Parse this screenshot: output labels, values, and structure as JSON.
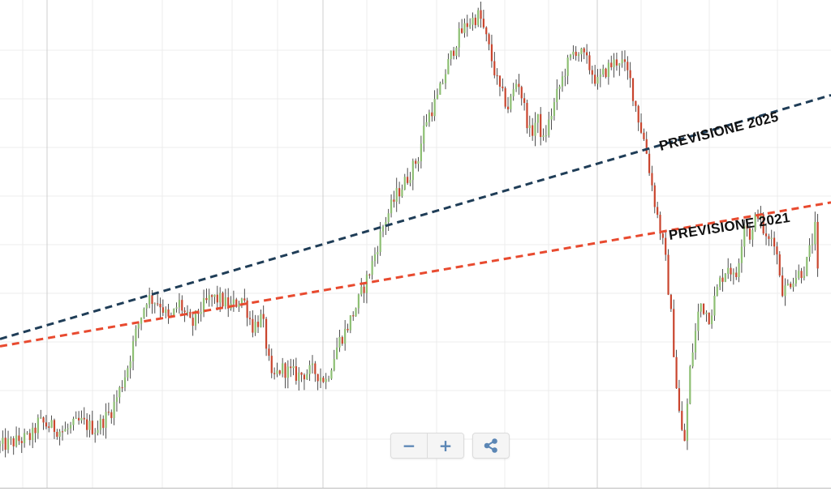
{
  "chart_data": {
    "type": "line",
    "style": "ohlc-candles",
    "title": "",
    "xlabel": "",
    "ylabel": "",
    "x_range": [
      0,
      260
    ],
    "y_range": [
      0,
      100
    ],
    "axes_labels_visible": false,
    "grid": true,
    "colors": {
      "up": "#8dbf73",
      "down": "#c9452e",
      "wick": "#222222",
      "trend_2025": "#1f3d57",
      "trend_2021": "#e84a2f",
      "grid": "#ececec",
      "grid_major": "#cfcfcf"
    },
    "price_path": [
      [
        0,
        8.5
      ],
      [
        10,
        10.5
      ],
      [
        12,
        13.5
      ],
      [
        20,
        11.5
      ],
      [
        25,
        13.5
      ],
      [
        30,
        12.0
      ],
      [
        35,
        16.0
      ],
      [
        38,
        21.0
      ],
      [
        40,
        25.0
      ],
      [
        43,
        33.0
      ],
      [
        46,
        39.0
      ],
      [
        50,
        38.0
      ],
      [
        53,
        34.0
      ],
      [
        56,
        38.0
      ],
      [
        60,
        33.0
      ],
      [
        62,
        36.0
      ],
      [
        66,
        39.0
      ],
      [
        69,
        38.5
      ],
      [
        72,
        37.0
      ],
      [
        76,
        39.0
      ],
      [
        79,
        33.0
      ],
      [
        82,
        35.0
      ],
      [
        85,
        22.0
      ],
      [
        88,
        24.5
      ],
      [
        93,
        23.0
      ],
      [
        98,
        24.0
      ],
      [
        102,
        22.0
      ],
      [
        106,
        30.0
      ],
      [
        108,
        32.0
      ],
      [
        112,
        38.0
      ],
      [
        116,
        45.0
      ],
      [
        120,
        54.0
      ],
      [
        124,
        60.0
      ],
      [
        127,
        63.0
      ],
      [
        131,
        68.0
      ],
      [
        133,
        75.0
      ],
      [
        137,
        80.0
      ],
      [
        140,
        86.5
      ],
      [
        143,
        92.0
      ],
      [
        146,
        95.0
      ],
      [
        150,
        97.0
      ],
      [
        153,
        90.0
      ],
      [
        156,
        82.0
      ],
      [
        159,
        78.0
      ],
      [
        162,
        84.0
      ],
      [
        166,
        72.0
      ],
      [
        168,
        76.0
      ],
      [
        170,
        71.0
      ],
      [
        174,
        80.0
      ],
      [
        177,
        86.0
      ],
      [
        180,
        90.0
      ],
      [
        183,
        88.0
      ],
      [
        187,
        83.0
      ],
      [
        190,
        86.0
      ],
      [
        194,
        88.0
      ],
      [
        197,
        84.0
      ],
      [
        200,
        75.0
      ],
      [
        202,
        70.0
      ],
      [
        205,
        58.0
      ],
      [
        208,
        48.0
      ],
      [
        210,
        35.0
      ],
      [
        212,
        18.0
      ],
      [
        214,
        8.0
      ],
      [
        216,
        25.0
      ],
      [
        219,
        38.0
      ],
      [
        222,
        35.0
      ],
      [
        225,
        42.0
      ],
      [
        228,
        46.0
      ],
      [
        230,
        42.0
      ],
      [
        233,
        55.0
      ],
      [
        235,
        51.0
      ],
      [
        237,
        57.0
      ],
      [
        240,
        50.0
      ],
      [
        242,
        52.0
      ],
      [
        245,
        40.0
      ],
      [
        248,
        43.0
      ],
      [
        252,
        45.0
      ],
      [
        255,
        53.0
      ],
      [
        256,
        42.0
      ]
    ],
    "series": [
      {
        "name": "PREVISIONE 2025",
        "x": [
          0,
          260
        ],
        "y": [
          30.5,
          80.5
        ]
      },
      {
        "name": "PREVISIONE 2021",
        "x": [
          0,
          260
        ],
        "y": [
          29.0,
          58.5
        ]
      }
    ]
  },
  "annotations": {
    "forecast_2025": "PREVISIONE 2025",
    "forecast_2021": "PREVISIONE 2021"
  },
  "toolbar": {
    "zoom_out_label": "−",
    "zoom_in_label": "+",
    "share_icon": "share-icon"
  }
}
